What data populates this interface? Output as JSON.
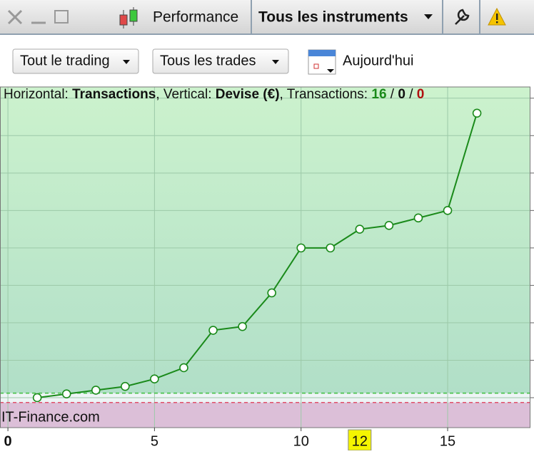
{
  "toolbar": {
    "title": "Performance",
    "instrument": "Tous les instruments"
  },
  "filters": {
    "trading": "Tout le trading",
    "trades": "Tous les trades",
    "date": "Aujourd'hui"
  },
  "chart_data": {
    "type": "line",
    "header": {
      "x_prefix": "Horizontal: ",
      "x_label": "Transactions",
      "y_prefix": ", Vertical: ",
      "y_label": "Devise (€)",
      "count_prefix": ", Transactions: ",
      "wins": 16,
      "separator": " / ",
      "neutral": 0,
      "losses": 0
    },
    "watermark": "IT-Finance.com",
    "x": [
      1,
      2,
      3,
      4,
      5,
      6,
      7,
      8,
      9,
      10,
      11,
      12,
      13,
      14,
      15,
      16
    ],
    "series": [
      {
        "color": "#1a8a1a",
        "values": [
          0,
          0.1,
          0.2,
          0.3,
          0.5,
          0.8,
          1.8,
          1.9,
          2.8,
          4,
          4,
          4.5,
          4.6,
          4.8,
          5,
          7.6
        ]
      }
    ],
    "xlim": [
      -0.27,
      17.8
    ],
    "xticks": [
      0,
      5,
      10,
      15
    ],
    "marker_x": 12,
    "ylim": [
      -0.8,
      8.3
    ],
    "yticks": [
      0,
      1,
      2,
      3,
      4,
      5,
      6,
      7,
      8
    ],
    "reference_lines": [
      {
        "value": 0.12,
        "color": "#3fbf3f"
      },
      {
        "value": -0.13,
        "color": "#e0506a"
      }
    ],
    "grid": true
  }
}
